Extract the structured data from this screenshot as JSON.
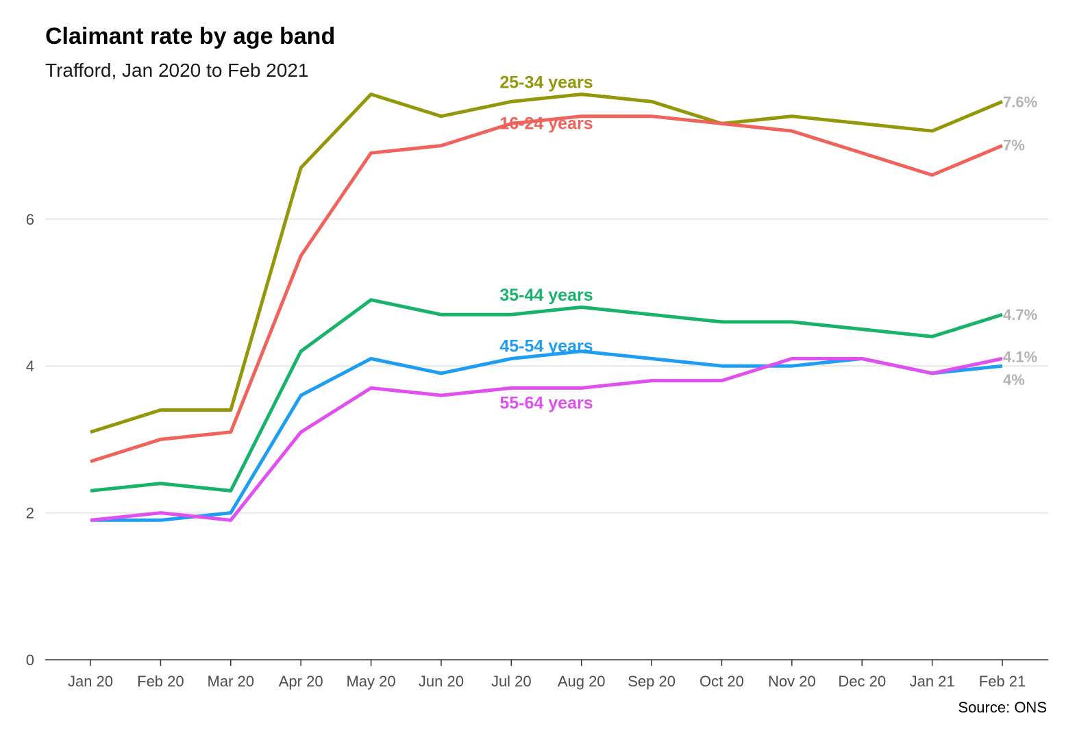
{
  "chart_data": {
    "type": "line",
    "title": "Claimant rate by age band",
    "subtitle": "Trafford, Jan 2020 to Feb 2021",
    "caption": "Source: ONS",
    "xlabel": "",
    "ylabel": "",
    "categories": [
      "Jan 20",
      "Feb 20",
      "Mar 20",
      "Apr 20",
      "May 20",
      "Jun 20",
      "Jul 20",
      "Aug 20",
      "Sep 20",
      "Oct 20",
      "Nov 20",
      "Dec 20",
      "Jan 21",
      "Feb 21"
    ],
    "ylim": [
      0,
      8
    ],
    "yticks": [
      0,
      2,
      4,
      6
    ],
    "grid": "horizontal",
    "legend": "direct labels",
    "end_label_color": "#b3b3b3",
    "series": [
      {
        "name": "25-34 years",
        "color": "#93970a",
        "end_label": "7.6%",
        "values": [
          3.1,
          3.4,
          3.4,
          6.7,
          7.7,
          7.4,
          7.6,
          7.7,
          7.6,
          7.3,
          7.4,
          7.3,
          7.2,
          7.6
        ]
      },
      {
        "name": "16-24 years",
        "color": "#f0625c",
        "end_label": "7%",
        "values": [
          2.7,
          3.0,
          3.1,
          5.5,
          6.9,
          7.0,
          7.3,
          7.4,
          7.4,
          7.3,
          7.2,
          6.9,
          6.6,
          7.0
        ]
      },
      {
        "name": "35-44 years",
        "color": "#18b36b",
        "end_label": "4.7%",
        "values": [
          2.3,
          2.4,
          2.3,
          4.2,
          4.9,
          4.7,
          4.7,
          4.8,
          4.7,
          4.6,
          4.6,
          4.5,
          4.4,
          4.7
        ]
      },
      {
        "name": "45-54 years",
        "color": "#1d9ef2",
        "end_label": "4%",
        "values": [
          1.9,
          1.9,
          2.0,
          3.6,
          4.1,
          3.9,
          4.1,
          4.2,
          4.1,
          4.0,
          4.0,
          4.1,
          3.9,
          4.0
        ]
      },
      {
        "name": "55-64 years",
        "color": "#e04ff0",
        "end_label": "4.1%",
        "values": [
          1.9,
          2.0,
          1.9,
          3.1,
          3.7,
          3.6,
          3.7,
          3.7,
          3.8,
          3.8,
          4.1,
          4.1,
          3.9,
          4.1
        ]
      }
    ]
  }
}
